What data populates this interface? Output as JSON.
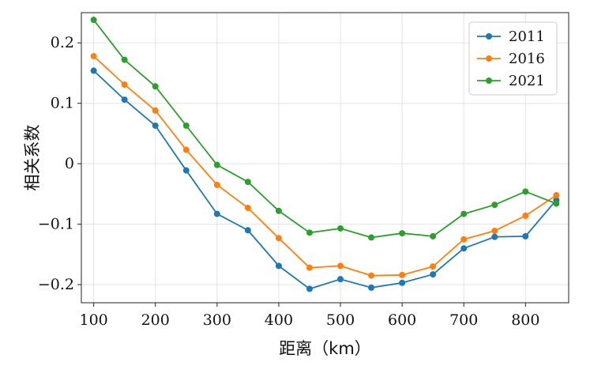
{
  "chart_data": {
    "type": "line",
    "title": "",
    "xlabel": "距离（km）",
    "ylabel": "相关系数",
    "x": [
      100,
      150,
      200,
      250,
      300,
      350,
      400,
      450,
      500,
      550,
      600,
      650,
      700,
      750,
      800,
      850
    ],
    "xlim": [
      80,
      870
    ],
    "ylim": [
      -0.23,
      0.25
    ],
    "xticks": [
      100,
      200,
      300,
      400,
      500,
      600,
      700,
      800
    ],
    "xtick_labels": [
      "100",
      "200",
      "300",
      "400",
      "500",
      "600",
      "700",
      "800"
    ],
    "yticks": [
      -0.2,
      -0.1,
      0,
      0.1,
      0.2
    ],
    "ytick_labels": [
      "−0.2",
      "−0.1",
      "0",
      "0.1",
      "0.2"
    ],
    "grid": true,
    "legend_position": "top-right",
    "series": [
      {
        "name": "2011",
        "color": "#1f77b4",
        "values": [
          0.154,
          0.106,
          0.063,
          -0.011,
          -0.083,
          -0.11,
          -0.169,
          -0.207,
          -0.191,
          -0.205,
          -0.197,
          -0.183,
          -0.14,
          -0.121,
          -0.12,
          -0.06
        ]
      },
      {
        "name": "2016",
        "color": "#ff7f0e",
        "values": [
          0.178,
          0.131,
          0.088,
          0.023,
          -0.035,
          -0.073,
          -0.123,
          -0.172,
          -0.169,
          -0.185,
          -0.184,
          -0.17,
          -0.125,
          -0.111,
          -0.086,
          -0.052
        ]
      },
      {
        "name": "2021",
        "color": "#2ca02c",
        "values": [
          0.238,
          0.172,
          0.128,
          0.063,
          -0.002,
          -0.03,
          -0.078,
          -0.114,
          -0.107,
          -0.122,
          -0.115,
          -0.12,
          -0.083,
          -0.068,
          -0.046,
          -0.066
        ]
      }
    ]
  }
}
